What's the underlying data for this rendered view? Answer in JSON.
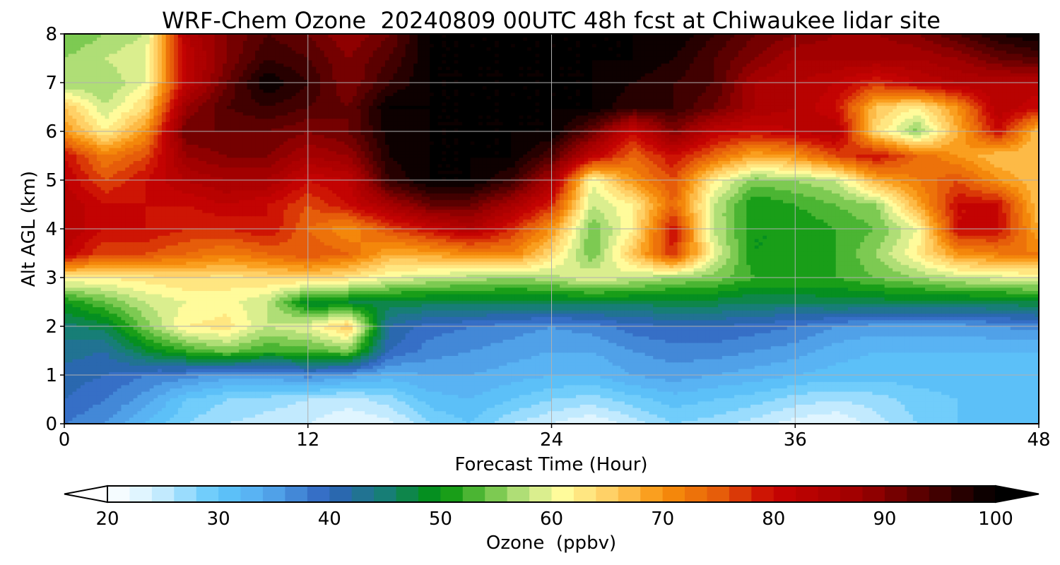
{
  "chart_data": {
    "type": "heatmap",
    "title": "WRF-Chem Ozone  20240809 00UTC 48h fcst at Chiwaukee lidar site",
    "xlabel": "Forecast Time (Hour)",
    "ylabel": "Alt AGL (km)",
    "xlim": [
      0,
      48
    ],
    "ylim": [
      0,
      8
    ],
    "xticks": [
      0,
      12,
      24,
      36,
      48
    ],
    "yticks": [
      0,
      1,
      2,
      3,
      4,
      5,
      6,
      7,
      8
    ],
    "grid": true,
    "colorbar": {
      "label": "Ozone  (ppbv)",
      "range": [
        20,
        100
      ],
      "ticks": [
        20,
        30,
        40,
        50,
        60,
        70,
        80,
        90,
        100
      ],
      "extend": "both",
      "stops": [
        {
          "v": 20,
          "c": "#ffffff"
        },
        {
          "v": 24,
          "c": "#d6f1ff"
        },
        {
          "v": 30,
          "c": "#5dc6fa"
        },
        {
          "v": 34,
          "c": "#57adf0"
        },
        {
          "v": 40,
          "c": "#2f62bd"
        },
        {
          "v": 45,
          "c": "#177e76"
        },
        {
          "v": 50,
          "c": "#00930a"
        },
        {
          "v": 54,
          "c": "#64c040"
        },
        {
          "v": 58,
          "c": "#c8e888"
        },
        {
          "v": 61,
          "c": "#fffb9b"
        },
        {
          "v": 66,
          "c": "#ffc75a"
        },
        {
          "v": 70,
          "c": "#f8920b"
        },
        {
          "v": 75,
          "c": "#e65d0a"
        },
        {
          "v": 80,
          "c": "#c80302"
        },
        {
          "v": 88,
          "c": "#9c0000"
        },
        {
          "v": 94,
          "c": "#4e0000"
        },
        {
          "v": 100,
          "c": "#000000"
        }
      ]
    },
    "x": [
      0,
      2,
      4,
      6,
      8,
      10,
      12,
      14,
      16,
      18,
      20,
      22,
      24,
      26,
      28,
      30,
      32,
      34,
      36,
      38,
      40,
      42,
      44,
      46,
      48
    ],
    "y": [
      0,
      0.5,
      1,
      1.5,
      2,
      2.5,
      3,
      3.5,
      4,
      4.5,
      5,
      5.5,
      6,
      6.5,
      7,
      7.5,
      8
    ],
    "z": [
      [
        38,
        36,
        32,
        28,
        26,
        25,
        24,
        22,
        23,
        28,
        30,
        26,
        24,
        22,
        25,
        28,
        27,
        25,
        23,
        22,
        25,
        28,
        30,
        31,
        32
      ],
      [
        40,
        38,
        35,
        30,
        28,
        27,
        26,
        25,
        27,
        31,
        32,
        30,
        28,
        27,
        29,
        31,
        30,
        29,
        27,
        26,
        27,
        29,
        30,
        31,
        32
      ],
      [
        41,
        40,
        38,
        37,
        35,
        35,
        37,
        35,
        33,
        34,
        34,
        33,
        32,
        32,
        34,
        35,
        34,
        33,
        32,
        31,
        31,
        31,
        31,
        31,
        32
      ],
      [
        43,
        42,
        48,
        52,
        55,
        52,
        53,
        55,
        40,
        37,
        36,
        35,
        34,
        34,
        36,
        37,
        37,
        36,
        35,
        33,
        32,
        32,
        32,
        32,
        32
      ],
      [
        45,
        47,
        55,
        62,
        63,
        58,
        60,
        66,
        42,
        39,
        38,
        37,
        36,
        37,
        39,
        40,
        40,
        39,
        38,
        36,
        35,
        35,
        35,
        36,
        37
      ],
      [
        50,
        54,
        58,
        60,
        61,
        58,
        48,
        48,
        47,
        47,
        47,
        47,
        47,
        47,
        47,
        47,
        47,
        46,
        46,
        47,
        47,
        47,
        47,
        47,
        48
      ],
      [
        62,
        62,
        63,
        64,
        63,
        64,
        65,
        63,
        60,
        58,
        57,
        56,
        57,
        60,
        58,
        56,
        55,
        52,
        52,
        52,
        54,
        56,
        58,
        59,
        60
      ],
      [
        82,
        76,
        76,
        74,
        72,
        74,
        76,
        74,
        68,
        69,
        71,
        72,
        64,
        54,
        66,
        78,
        60,
        50,
        50,
        52,
        56,
        62,
        70,
        72,
        72
      ],
      [
        84,
        80,
        80,
        78,
        78,
        80,
        74,
        70,
        76,
        80,
        84,
        78,
        70,
        54,
        62,
        80,
        58,
        50,
        50,
        52,
        54,
        60,
        80,
        80,
        68
      ],
      [
        84,
        80,
        80,
        80,
        82,
        80,
        76,
        80,
        86,
        92,
        92,
        86,
        78,
        58,
        62,
        74,
        58,
        50,
        52,
        54,
        56,
        68,
        80,
        80,
        66
      ],
      [
        82,
        76,
        80,
        84,
        86,
        86,
        80,
        82,
        96,
        100,
        100,
        96,
        86,
        60,
        70,
        76,
        62,
        55,
        56,
        58,
        68,
        72,
        76,
        70,
        66
      ],
      [
        80,
        72,
        76,
        88,
        90,
        90,
        86,
        88,
        98,
        100,
        100,
        100,
        94,
        82,
        74,
        80,
        74,
        68,
        70,
        76,
        80,
        74,
        70,
        66,
        66
      ],
      [
        70,
        62,
        70,
        92,
        92,
        92,
        90,
        92,
        99,
        100,
        100,
        100,
        100,
        92,
        80,
        90,
        82,
        80,
        82,
        84,
        64,
        55,
        68,
        80,
        66
      ],
      [
        66,
        58,
        64,
        88,
        94,
        96,
        94,
        92,
        100,
        100,
        100,
        100,
        100,
        100,
        96,
        96,
        92,
        86,
        84,
        80,
        66,
        62,
        70,
        84,
        80
      ],
      [
        56,
        56,
        60,
        82,
        92,
        100,
        96,
        90,
        96,
        100,
        100,
        100,
        100,
        100,
        98,
        96,
        94,
        86,
        84,
        82,
        78,
        82,
        84,
        84,
        84
      ],
      [
        56,
        58,
        60,
        82,
        90,
        96,
        94,
        90,
        94,
        100,
        100,
        100,
        100,
        100,
        100,
        98,
        94,
        90,
        86,
        86,
        86,
        86,
        88,
        92,
        94
      ],
      [
        54,
        56,
        58,
        84,
        90,
        94,
        92,
        88,
        92,
        100,
        100,
        100,
        100,
        100,
        100,
        100,
        96,
        92,
        90,
        88,
        88,
        90,
        94,
        98,
        100
      ]
    ]
  }
}
